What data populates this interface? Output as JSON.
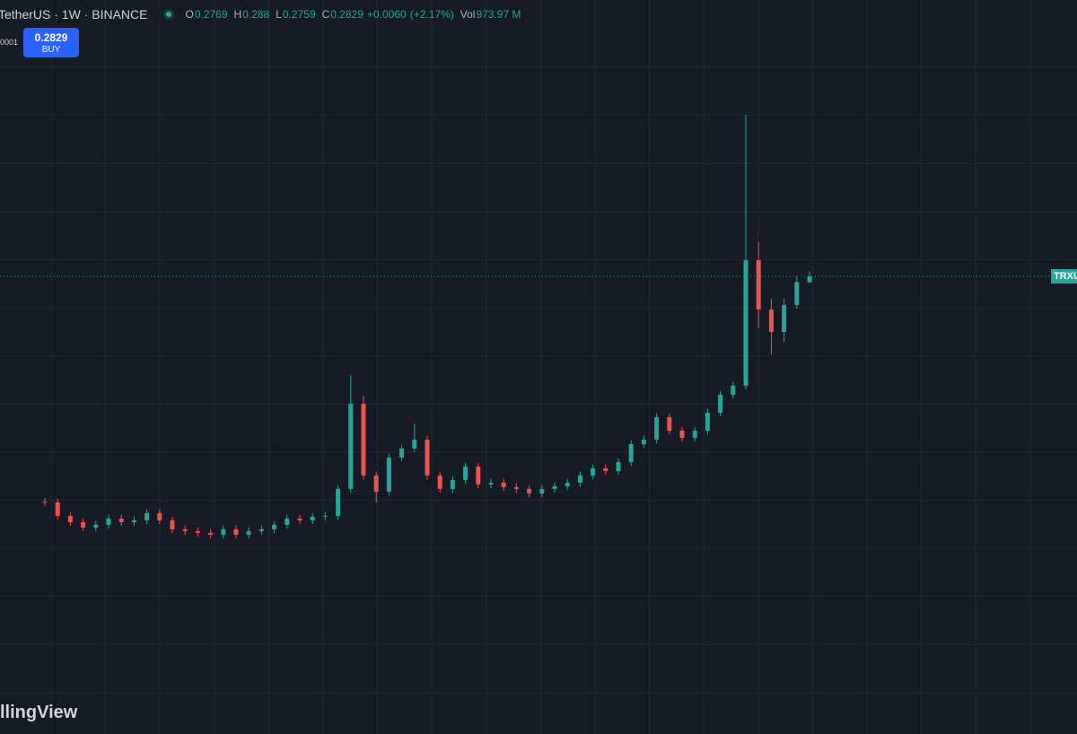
{
  "chart_data": {
    "type": "candlestick",
    "title": "TetherUS · 1W · BINANCE",
    "legend_labels": {
      "open": "O",
      "high": "H",
      "low": "L",
      "close": "C",
      "volume": "Vol"
    },
    "change": "+0.0060",
    "change_pct": "(+2.17%)",
    "volume": "973.97 M",
    "left_label": "0001",
    "buy_label": "BUY",
    "price_tag": "TRXU",
    "watermark": "llingView",
    "up_color": "#26a69a",
    "down_color": "#ef5350",
    "grid": true,
    "ylim": [
      -0.16,
      0.567
    ],
    "open": [
      0.051,
      0.0504,
      0.0366,
      0.0301,
      0.0246,
      0.0274,
      0.0338,
      0.0301,
      0.032,
      0.0394,
      0.032,
      0.0228,
      0.0209,
      0.0191,
      0.0172,
      0.0228,
      0.0172,
      0.0209,
      0.0228,
      0.0274,
      0.0338,
      0.032,
      0.0357,
      0.0366,
      0.0643,
      0.1519,
      0.0781,
      0.0615,
      0.0966,
      0.1058,
      0.115,
      0.0781,
      0.0643,
      0.0735,
      0.0873,
      0.0689,
      0.0707,
      0.0661,
      0.0643,
      0.0597,
      0.0643,
      0.067,
      0.0707,
      0.0781,
      0.0855,
      0.0827,
      0.0919,
      0.1104,
      0.115,
      0.1381,
      0.1242,
      0.1168,
      0.1242,
      0.1427,
      0.1611,
      0.1704,
      0.2995,
      0.2488,
      0.2257,
      0.2534,
      0.2769
    ],
    "high": [
      0.055,
      0.0544,
      0.0406,
      0.0341,
      0.0314,
      0.0378,
      0.0378,
      0.036,
      0.0434,
      0.0434,
      0.036,
      0.0268,
      0.0249,
      0.0231,
      0.0268,
      0.0268,
      0.0249,
      0.0268,
      0.0314,
      0.0378,
      0.0378,
      0.0397,
      0.0406,
      0.0683,
      0.181,
      0.16,
      0.0821,
      0.1006,
      0.1098,
      0.1316,
      0.119,
      0.0821,
      0.0775,
      0.0913,
      0.0913,
      0.0747,
      0.0747,
      0.0701,
      0.0683,
      0.0683,
      0.071,
      0.0747,
      0.0821,
      0.0895,
      0.0895,
      0.0959,
      0.1144,
      0.119,
      0.1421,
      0.1421,
      0.1282,
      0.1282,
      0.1467,
      0.1651,
      0.1744,
      0.449,
      0.318,
      0.26,
      0.26,
      0.283,
      0.288
    ],
    "low": [
      0.0464,
      0.0326,
      0.0261,
      0.0206,
      0.0206,
      0.0234,
      0.0261,
      0.0261,
      0.028,
      0.028,
      0.0188,
      0.0169,
      0.0151,
      0.0132,
      0.0132,
      0.0132,
      0.0132,
      0.0169,
      0.0188,
      0.0234,
      0.028,
      0.028,
      0.0317,
      0.0326,
      0.0603,
      0.0741,
      0.0504,
      0.0575,
      0.0926,
      0.1018,
      0.0741,
      0.0603,
      0.0603,
      0.0695,
      0.0649,
      0.0649,
      0.0621,
      0.0603,
      0.0557,
      0.0557,
      0.0603,
      0.063,
      0.0667,
      0.0741,
      0.0787,
      0.0787,
      0.0879,
      0.1064,
      0.111,
      0.1202,
      0.1128,
      0.1128,
      0.1202,
      0.1387,
      0.1571,
      0.1664,
      0.23,
      0.2026,
      0.215,
      0.2494,
      0.2759
    ],
    "close": [
      0.0504,
      0.0366,
      0.0301,
      0.0246,
      0.0274,
      0.0338,
      0.0301,
      0.032,
      0.0394,
      0.032,
      0.0228,
      0.0209,
      0.0191,
      0.0172,
      0.0228,
      0.0172,
      0.0209,
      0.0228,
      0.0274,
      0.0338,
      0.032,
      0.0357,
      0.0366,
      0.0643,
      0.1519,
      0.0781,
      0.0615,
      0.0966,
      0.1058,
      0.115,
      0.0781,
      0.0643,
      0.0735,
      0.0873,
      0.0689,
      0.0707,
      0.0661,
      0.0643,
      0.0597,
      0.0643,
      0.067,
      0.0707,
      0.0781,
      0.0855,
      0.0827,
      0.0919,
      0.1104,
      0.115,
      0.1381,
      0.1242,
      0.1168,
      0.1242,
      0.1427,
      0.1611,
      0.1704,
      0.2995,
      0.2488,
      0.2257,
      0.2534,
      0.2769,
      0.2829
    ]
  }
}
